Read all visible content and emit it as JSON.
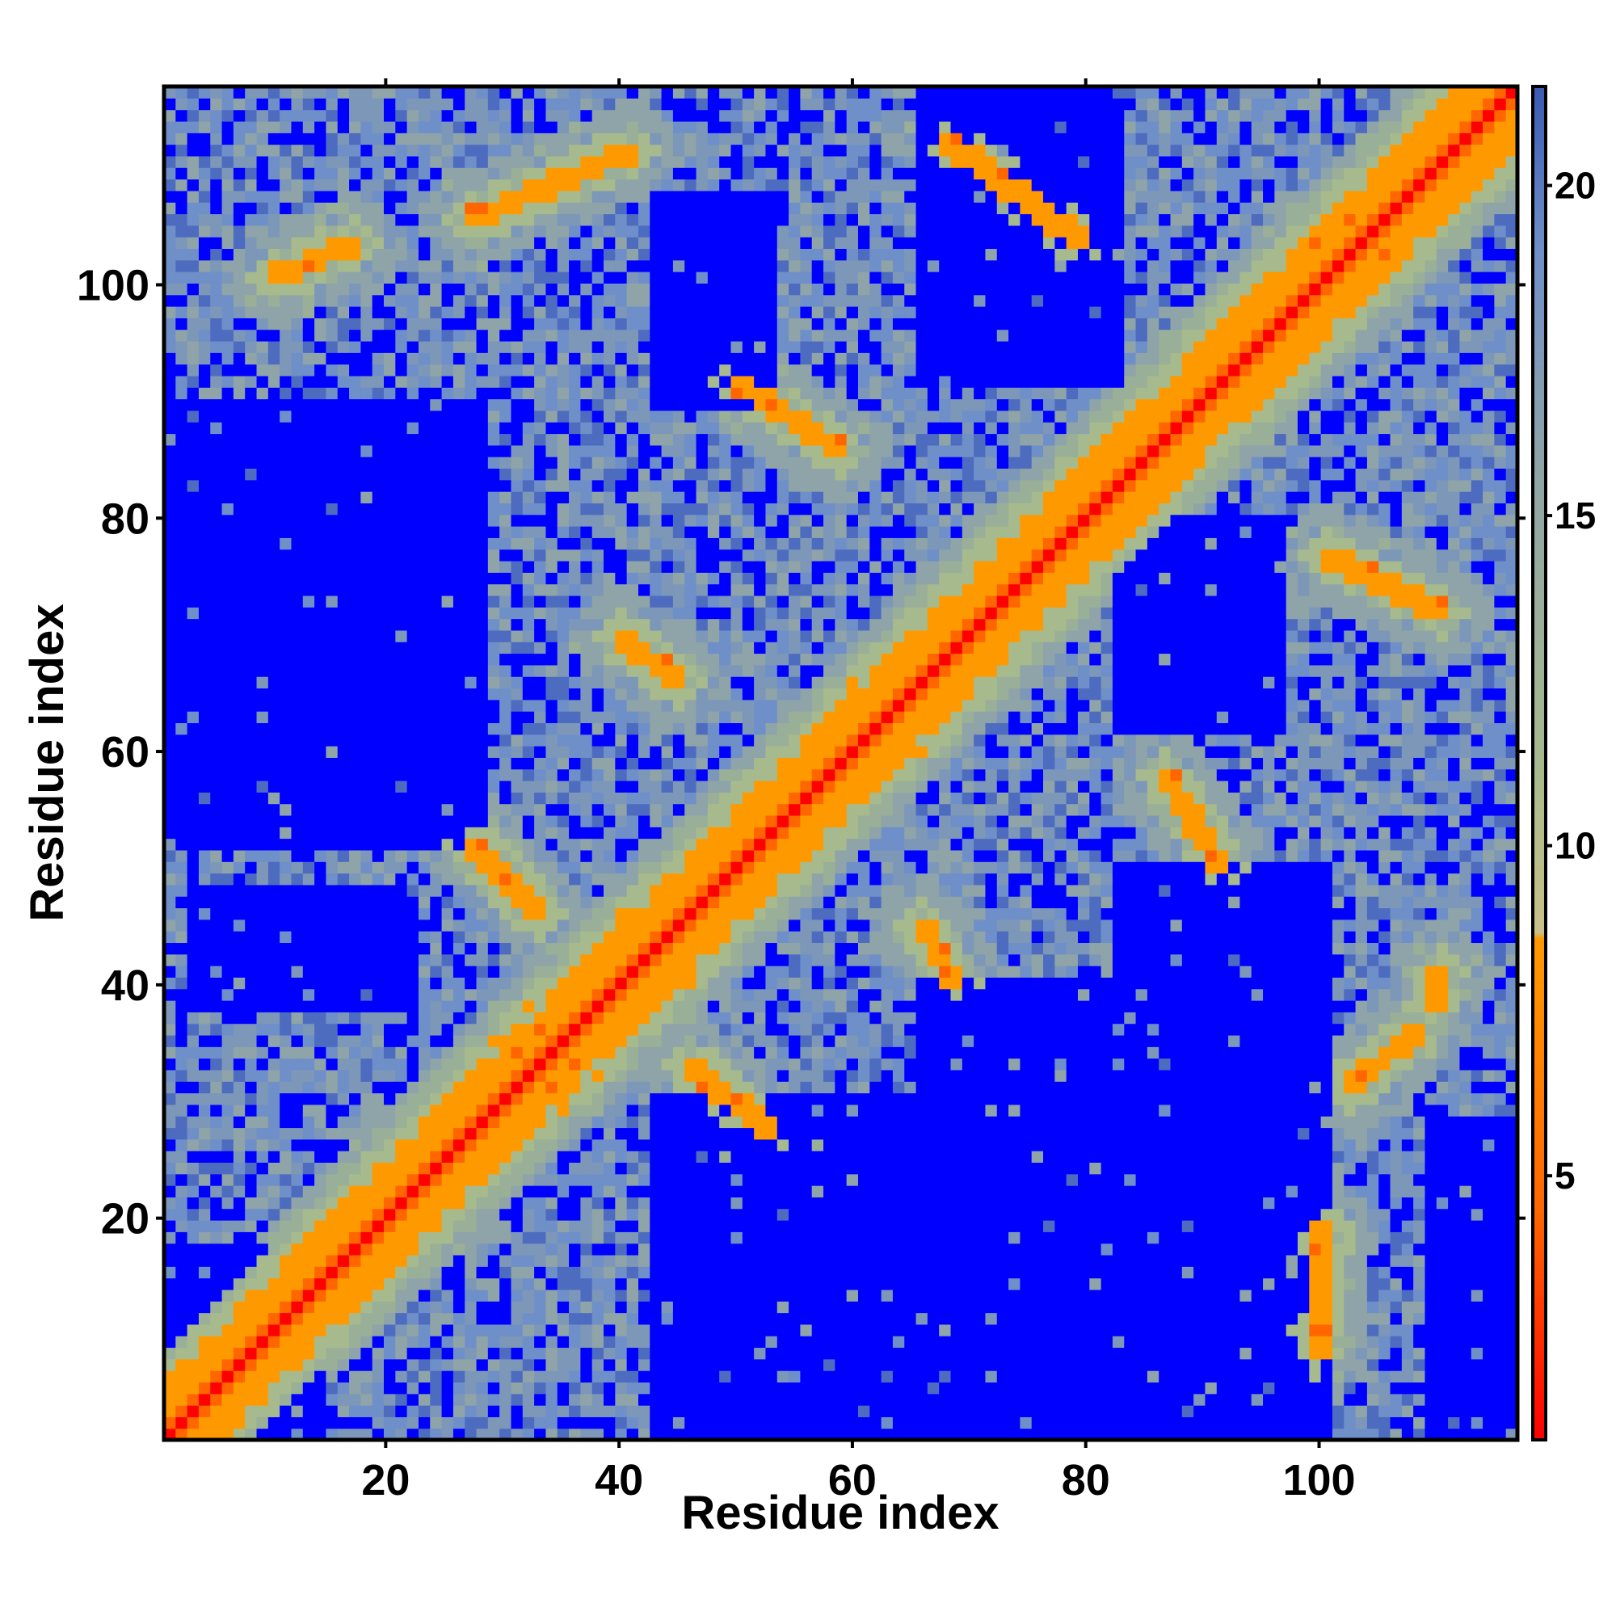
{
  "chart_data": {
    "type": "heatmap",
    "title": "",
    "xlabel": "Residue index",
    "ylabel": "Residue index",
    "n_residues": 117,
    "xlim": [
      1,
      117
    ],
    "ylim": [
      1,
      117
    ],
    "x_ticks": [
      20,
      40,
      60,
      80,
      100
    ],
    "y_ticks": [
      20,
      40,
      60,
      80,
      100
    ],
    "colorbar": {
      "ticks": [
        5,
        10,
        15,
        20
      ],
      "range": [
        1,
        21.5
      ],
      "saturates_above": 21.5
    },
    "colors": {
      "contact_short": "#ff0000",
      "contact_mid": "#ff9900",
      "gray_green": "#a7ba8d",
      "steel_blue": "#6f8fc8",
      "far": "#0000ff"
    },
    "grid": false,
    "legend": "colorbar-right",
    "structure": {
      "diagonal_distance": 1,
      "helix_ranges": [
        [
          1,
          28
        ],
        [
          34,
          76
        ],
        [
          78,
          105
        ],
        [
          107,
          117
        ]
      ],
      "contact_segments": [
        {
          "start": [
            10,
            101
          ],
          "end": [
            17,
            104
          ],
          "min_distance": 5
        },
        {
          "start": [
            27,
            106
          ],
          "end": [
            41,
            112
          ],
          "min_distance": 5
        },
        {
          "start": [
            50,
            92
          ],
          "end": [
            59,
            86
          ],
          "min_distance": 5
        },
        {
          "start": [
            68,
            113
          ],
          "end": [
            80,
            104
          ],
          "min_distance": 5
        },
        {
          "start": [
            99,
            104
          ],
          "end": [
            104,
            99
          ],
          "min_distance": 5
        },
        {
          "start": [
            101,
            77
          ],
          "end": [
            111,
            72
          ],
          "min_distance": 5
        },
        {
          "start": [
            27,
            52
          ],
          "end": [
            33,
            46
          ],
          "min_distance": 5
        },
        {
          "start": [
            40,
            70
          ],
          "end": [
            45,
            66
          ],
          "min_distance": 5
        },
        {
          "start": [
            66,
            45
          ],
          "end": [
            69,
            40
          ],
          "min_distance": 5
        },
        {
          "start": [
            87,
            58
          ],
          "end": [
            92,
            50
          ],
          "min_distance": 5
        },
        {
          "start": [
            46,
            33
          ],
          "end": [
            53,
            27
          ],
          "min_distance": 5
        },
        {
          "start": [
            103,
            31
          ],
          "end": [
            109,
            36
          ],
          "min_distance": 5
        },
        {
          "start": [
            100,
            8
          ],
          "end": [
            101,
            19
          ],
          "min_distance": 5
        },
        {
          "start": [
            110,
            38
          ],
          "end": [
            111,
            41
          ],
          "min_distance": 6
        }
      ],
      "empty_blocks": [
        {
          "x": [
            43,
            66
          ],
          "y": [
            1,
            30
          ]
        },
        {
          "x": [
            66,
            101
          ],
          "y": [
            1,
            40
          ]
        },
        {
          "x": [
            1,
            28
          ],
          "y": [
            52,
            90
          ]
        },
        {
          "x": [
            3,
            22
          ],
          "y": [
            38,
            48
          ]
        },
        {
          "x": [
            83,
            101
          ],
          "y": [
            28,
            50
          ]
        },
        {
          "x": [
            43,
            53
          ],
          "y": [
            90,
            108
          ]
        },
        {
          "x": [
            66,
            83
          ],
          "y": [
            92,
            117
          ]
        },
        {
          "x": [
            83,
            97
          ],
          "y": [
            62,
            80
          ]
        },
        {
          "x": [
            1,
            14
          ],
          "y": [
            1,
            17
          ]
        },
        {
          "x": [
            110,
            117
          ],
          "y": [
            1,
            28
          ]
        }
      ]
    }
  }
}
